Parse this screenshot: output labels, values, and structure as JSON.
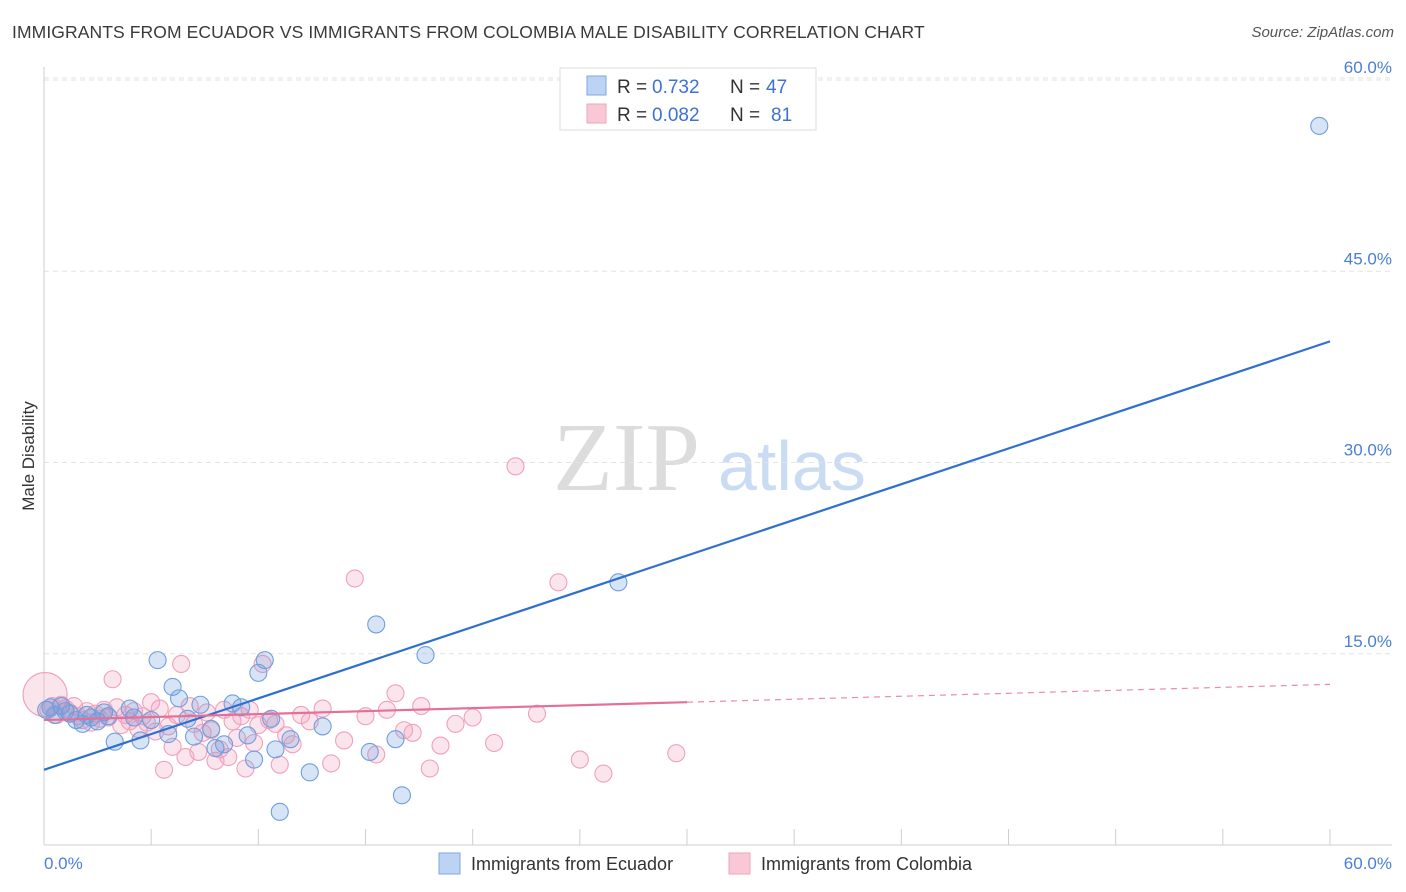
{
  "header": {
    "title": "IMMIGRANTS FROM ECUADOR VS IMMIGRANTS FROM COLOMBIA MALE DISABILITY CORRELATION CHART",
    "source": "Source: ZipAtlas.com"
  },
  "watermark": {
    "zip": "ZIP",
    "atlas": "atlas"
  },
  "legend": {
    "r_label": "R =",
    "n_label": "N =",
    "ecuador": {
      "r": "0.732",
      "n": "47"
    },
    "colombia": {
      "r": "0.082",
      "n": "81"
    }
  },
  "colors": {
    "ecuador": "#6f9fe0",
    "ecuador_line": "#2f6fcf",
    "colombia": "#f0a0bb",
    "colombia_line": "#e46f98",
    "axis_text": "#4a7fd4"
  },
  "chart_data": {
    "type": "scatter",
    "title": "IMMIGRANTS FROM ECUADOR VS IMMIGRANTS FROM COLOMBIA MALE DISABILITY CORRELATION CHART",
    "xlabel": "",
    "ylabel": "Male Disability",
    "xlim": [
      0,
      60
    ],
    "ylim": [
      0,
      60
    ],
    "x_tick_labels": [
      "0.0%",
      "60.0%"
    ],
    "y_ticks": [
      {
        "value": 15,
        "label": "15.0%"
      },
      {
        "value": 30,
        "label": "30.0%"
      },
      {
        "value": 45,
        "label": "45.0%"
      },
      {
        "value": 60,
        "label": "60.0%"
      }
    ],
    "series": [
      {
        "name": "Immigrants from Ecuador",
        "r": 0.732,
        "n": 47,
        "trend": {
          "x0": 0,
          "y0": 5.9,
          "x1": 60,
          "y1": 39.5,
          "dashed_from": null
        },
        "points": [
          [
            0.1,
            10.6
          ],
          [
            0.3,
            10.8
          ],
          [
            0.5,
            10.2
          ],
          [
            0.8,
            10.9
          ],
          [
            1.0,
            10.5
          ],
          [
            1.2,
            10.3
          ],
          [
            1.5,
            9.8
          ],
          [
            1.8,
            9.5
          ],
          [
            2.0,
            10.2
          ],
          [
            2.2,
            10.0
          ],
          [
            2.5,
            9.7
          ],
          [
            2.8,
            10.4
          ],
          [
            3.0,
            10.1
          ],
          [
            3.3,
            8.1
          ],
          [
            4.0,
            10.7
          ],
          [
            4.2,
            10.0
          ],
          [
            4.5,
            8.2
          ],
          [
            5.0,
            9.8
          ],
          [
            5.3,
            14.5
          ],
          [
            5.8,
            8.7
          ],
          [
            6.0,
            12.4
          ],
          [
            6.3,
            11.5
          ],
          [
            6.7,
            9.9
          ],
          [
            7.0,
            8.5
          ],
          [
            7.3,
            11.0
          ],
          [
            7.8,
            9.1
          ],
          [
            8.0,
            7.6
          ],
          [
            8.4,
            7.9
          ],
          [
            8.8,
            11.1
          ],
          [
            9.2,
            10.8
          ],
          [
            9.5,
            8.6
          ],
          [
            9.8,
            6.7
          ],
          [
            10.0,
            13.5
          ],
          [
            10.3,
            14.5
          ],
          [
            10.6,
            9.9
          ],
          [
            10.8,
            7.5
          ],
          [
            11.0,
            2.6
          ],
          [
            11.5,
            8.3
          ],
          [
            12.4,
            5.7
          ],
          [
            13.0,
            9.3
          ],
          [
            15.2,
            7.3
          ],
          [
            15.5,
            17.3
          ],
          [
            16.4,
            8.3
          ],
          [
            16.7,
            3.9
          ],
          [
            17.8,
            14.9
          ],
          [
            26.8,
            20.6
          ],
          [
            59.5,
            56.4
          ]
        ]
      },
      {
        "name": "Immigrants from Colombia",
        "r": 0.082,
        "n": 81,
        "trend": {
          "x0": 0,
          "y0": 9.8,
          "x1": 60,
          "y1": 12.6,
          "dashed_from": 30
        },
        "points": [
          [
            0.05,
            11.8
          ],
          [
            0.2,
            10.6
          ],
          [
            0.4,
            10.9
          ],
          [
            0.6,
            10.2
          ],
          [
            0.8,
            11.0
          ],
          [
            1.0,
            10.7
          ],
          [
            1.2,
            10.4
          ],
          [
            1.4,
            10.9
          ],
          [
            1.6,
            10.1
          ],
          [
            1.8,
            9.8
          ],
          [
            2.0,
            10.5
          ],
          [
            2.2,
            9.6
          ],
          [
            2.4,
            10.3
          ],
          [
            2.6,
            9.9
          ],
          [
            2.8,
            10.6
          ],
          [
            3.0,
            10.0
          ],
          [
            3.2,
            13.0
          ],
          [
            3.4,
            10.8
          ],
          [
            3.6,
            9.4
          ],
          [
            3.8,
            10.2
          ],
          [
            4.0,
            9.7
          ],
          [
            4.2,
            10.5
          ],
          [
            4.4,
            9.1
          ],
          [
            4.6,
            10.1
          ],
          [
            4.8,
            9.6
          ],
          [
            5.0,
            11.2
          ],
          [
            5.2,
            8.9
          ],
          [
            5.4,
            10.7
          ],
          [
            5.6,
            5.9
          ],
          [
            5.8,
            9.3
          ],
          [
            6.0,
            7.7
          ],
          [
            6.2,
            10.2
          ],
          [
            6.4,
            14.2
          ],
          [
            6.6,
            6.9
          ],
          [
            6.8,
            10.9
          ],
          [
            7.0,
            9.5
          ],
          [
            7.2,
            7.3
          ],
          [
            7.4,
            8.8
          ],
          [
            7.6,
            10.4
          ],
          [
            7.8,
            9.0
          ],
          [
            8.0,
            6.6
          ],
          [
            8.2,
            7.5
          ],
          [
            8.4,
            10.6
          ],
          [
            8.6,
            6.9
          ],
          [
            8.8,
            9.7
          ],
          [
            9.0,
            8.4
          ],
          [
            9.2,
            10.1
          ],
          [
            9.4,
            6.0
          ],
          [
            9.6,
            10.6
          ],
          [
            9.8,
            8.0
          ],
          [
            10.0,
            9.4
          ],
          [
            10.2,
            14.2
          ],
          [
            10.5,
            9.8
          ],
          [
            10.8,
            9.5
          ],
          [
            11.0,
            6.3
          ],
          [
            11.3,
            8.6
          ],
          [
            11.6,
            7.9
          ],
          [
            12.0,
            10.2
          ],
          [
            12.4,
            9.7
          ],
          [
            13.0,
            10.7
          ],
          [
            13.4,
            6.4
          ],
          [
            14.0,
            8.2
          ],
          [
            14.5,
            20.9
          ],
          [
            15.0,
            10.1
          ],
          [
            15.5,
            7.1
          ],
          [
            16.0,
            10.6
          ],
          [
            16.4,
            11.9
          ],
          [
            16.8,
            9.0
          ],
          [
            17.2,
            8.8
          ],
          [
            17.6,
            10.9
          ],
          [
            18.0,
            6.0
          ],
          [
            18.5,
            7.8
          ],
          [
            19.2,
            9.5
          ],
          [
            20.0,
            10.0
          ],
          [
            21.0,
            8.0
          ],
          [
            22.0,
            29.7
          ],
          [
            23.0,
            10.3
          ],
          [
            24.0,
            20.6
          ],
          [
            25.0,
            6.7
          ],
          [
            26.1,
            5.6
          ],
          [
            29.5,
            7.2
          ]
        ]
      }
    ]
  }
}
